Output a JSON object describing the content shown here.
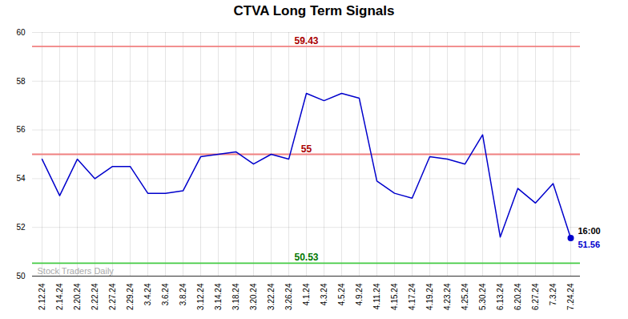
{
  "chart_data": {
    "type": "line",
    "title": "CTVA Long Term Signals",
    "categories": [
      "2.12.24",
      "2.14.24",
      "2.20.24",
      "2.22.24",
      "2.27.24",
      "2.29.24",
      "3.4.24",
      "3.6.24",
      "3.8.24",
      "3.12.24",
      "3.14.24",
      "3.18.24",
      "3.20.24",
      "3.22.24",
      "3.26.24",
      "4.1.24",
      "4.3.24",
      "4.5.24",
      "4.9.24",
      "4.11.24",
      "4.15.24",
      "4.17.24",
      "4.19.24",
      "4.23.24",
      "4.25.24",
      "5.30.24",
      "6.13.24",
      "6.20.24",
      "6.27.24",
      "7.3.24",
      "7.24.24"
    ],
    "values": [
      54.8,
      53.3,
      54.8,
      54.0,
      54.5,
      54.5,
      53.4,
      53.4,
      53.5,
      54.9,
      55.0,
      55.1,
      54.6,
      55.0,
      54.8,
      57.5,
      57.2,
      57.5,
      57.3,
      53.9,
      53.4,
      53.2,
      54.9,
      54.8,
      54.6,
      55.8,
      51.6,
      53.6,
      53.0,
      53.8,
      51.56
    ],
    "color": "#0000cc",
    "ylim": [
      50,
      60
    ],
    "yticks": [
      50,
      52,
      54,
      56,
      58,
      60
    ],
    "grid": true,
    "hlines": [
      {
        "value": 59.43,
        "label": "59.43",
        "color": "#f08080",
        "label_color": "#aa0000"
      },
      {
        "value": 55,
        "label": "55",
        "color": "#f08080",
        "label_color": "#aa0000"
      },
      {
        "value": 50.53,
        "label": "50.53",
        "color": "#44cc44",
        "label_color": "#007700"
      }
    ],
    "watermark": {
      "text": "Stock Traders Daily",
      "color": "#aaaaaa"
    },
    "last_point": {
      "label": "16:00",
      "value_label": "51.56",
      "color": "#0000cc",
      "label_color": "#000000"
    }
  }
}
